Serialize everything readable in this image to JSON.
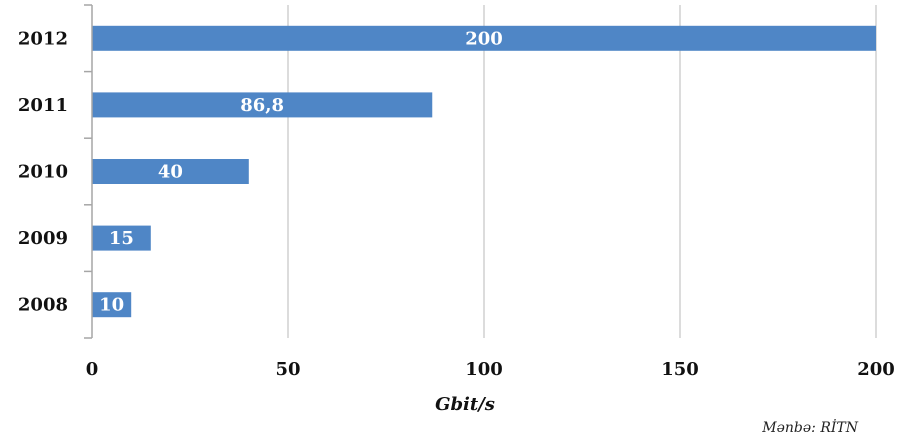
{
  "chart_data": {
    "type": "bar",
    "orientation": "horizontal",
    "categories": [
      "2012",
      "2011",
      "2010",
      "2009",
      "2008"
    ],
    "values": [
      200,
      86.8,
      40,
      15,
      10
    ],
    "data_labels": [
      "200",
      "86,8",
      "40",
      "15",
      "10"
    ],
    "xlabel": "Gbit/s",
    "ylabel": "",
    "xlim": [
      0,
      200
    ],
    "x_ticks": [
      0,
      50,
      100,
      150,
      200
    ],
    "x_tick_labels": [
      "0",
      "50",
      "100",
      "150",
      "200"
    ],
    "grid": "vertical",
    "legend": "none",
    "bar_color": "#4f86c6",
    "grid_color": "#d0d0d0",
    "source": "Mənbə: RİTN"
  }
}
